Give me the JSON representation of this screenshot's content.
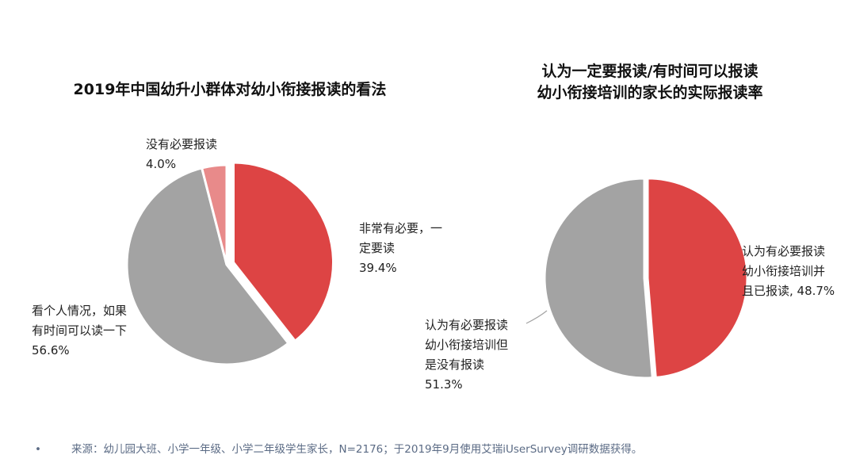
{
  "colors": {
    "red": "#dd4444",
    "gray": "#a3a3a3",
    "pink": "#e88a8a",
    "footer": "#5b6b85"
  },
  "chart_data": [
    {
      "type": "pie",
      "title": "2019年中国幼升小群体对幼小衔接报读的看法",
      "slices": [
        {
          "label_lines": [
            "非常有必要，一",
            "定要读"
          ],
          "value_label": "39.4%",
          "value": 39.4,
          "color": "#dd4444",
          "exploded": true
        },
        {
          "label_lines": [
            "看个人情况，如果",
            "有时间可以读一下"
          ],
          "value_label": "56.6%",
          "value": 56.6,
          "color": "#a3a3a3",
          "exploded": false
        },
        {
          "label_lines": [
            "没有必要报读"
          ],
          "value_label": "4.0%",
          "value": 4.0,
          "color": "#e88a8a",
          "exploded": false
        }
      ]
    },
    {
      "type": "pie",
      "title_lines": [
        "认为一定要报读/有时间可以报读",
        "幼小衔接培训的家长的实际报读率"
      ],
      "slices": [
        {
          "label_lines": [
            "认为有必要报读",
            "幼小衔接培训并",
            "且已报读, 48.7%"
          ],
          "value": 48.7,
          "color": "#dd4444",
          "exploded": true
        },
        {
          "label_lines": [
            "认为有必要报读",
            "幼小衔接培训但",
            "是没有报读"
          ],
          "value_label": "51.3%",
          "value": 51.3,
          "color": "#a3a3a3",
          "exploded": false
        }
      ]
    }
  ],
  "footer": {
    "bullet": "•",
    "text": "来源：幼儿园大班、小学一年级、小学二年级学生家长，N=2176；于2019年9月使用艾瑞iUserSurvey调研数据获得。"
  }
}
